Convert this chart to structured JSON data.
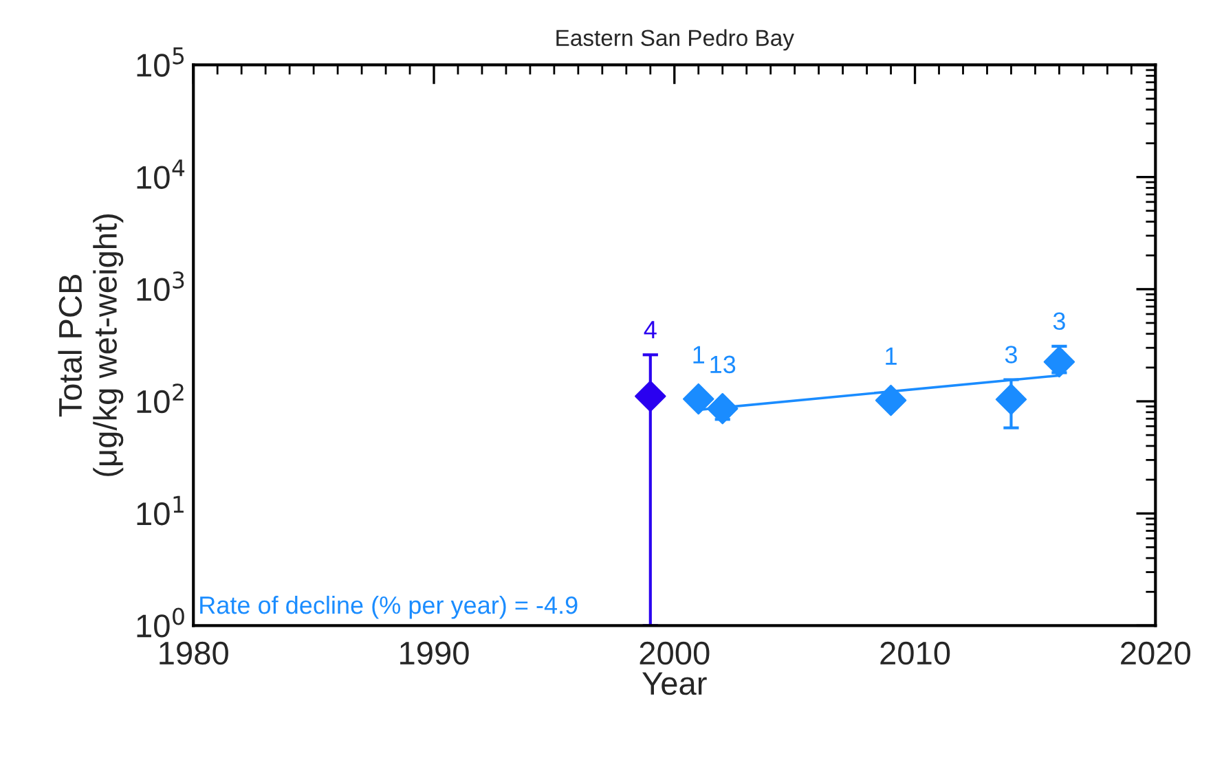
{
  "chart_data": {
    "type": "scatter",
    "title": "Eastern San Pedro Bay",
    "xlabel": "Year",
    "ylabel": "Total PCB\n(μg/kg wet-weight)",
    "log": "y",
    "grid": false,
    "legend": false,
    "marker": "diamond",
    "xlim": [
      1980,
      2020
    ],
    "xticks": [
      1980,
      1990,
      2000,
      2010,
      2020
    ],
    "ylim": [
      1,
      100000
    ],
    "yticks": [
      {
        "value": 1,
        "label": "10$^{0}$"
      },
      {
        "value": 10,
        "label": "10$^{1}$"
      },
      {
        "value": 100,
        "label": "10$^{2}$"
      },
      {
        "value": 1000,
        "label": "10$^{3}$"
      },
      {
        "value": 10000,
        "label": "10$^{4}$"
      },
      {
        "value": 100000,
        "label": "10$^{5}$"
      }
    ],
    "series": [
      {
        "color": "#2a00f0",
        "x": [
          1999
        ],
        "values": [
          111
        ],
        "errors": [
          [
            1,
            260
          ]
        ]
      },
      {
        "color": "#1a8cff",
        "x": [
          2001,
          2002,
          2009,
          2014,
          2016
        ],
        "values": [
          105,
          86,
          102,
          104,
          225
        ],
        "errors": [
          null,
          [
            69,
            86
          ],
          null,
          [
            58,
            156
          ],
          [
            180,
            310
          ]
        ]
      },
      {
        "type": "line",
        "color": "#1a8cff",
        "marker": "none",
        "line_style": "solid",
        "x": [
          2001,
          2016
        ],
        "values": [
          84,
          170
        ]
      }
    ],
    "annotations": [
      {
        "text": "4",
        "x": 1999,
        "y": 260
      },
      {
        "text": "1",
        "x": 2001,
        "y": 105
      },
      {
        "text": "13",
        "x": 2002,
        "y": 86
      },
      {
        "text": "1",
        "x": 2009,
        "y": 102
      },
      {
        "text": "3",
        "x": 2014,
        "y": 156
      },
      {
        "text": "3",
        "x": 2016,
        "y": 310
      },
      "Rate of decline (% per year) = -4.9"
    ]
  }
}
